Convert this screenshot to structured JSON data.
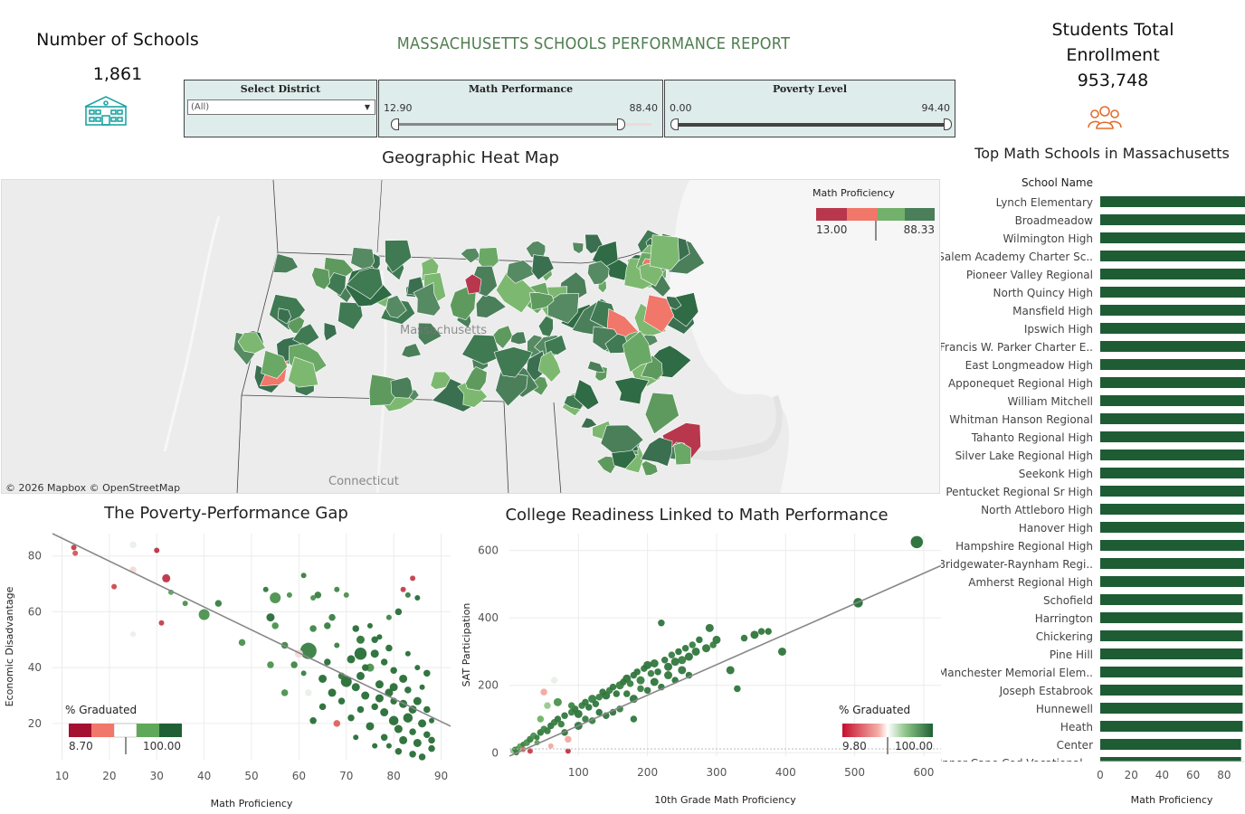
{
  "header": {
    "report_title": "MASSACHUSETTS SCHOOLS PERFORMANCE REPORT",
    "schools_label": "Number of Schools",
    "schools_value": "1,861",
    "enrollment_label_line1": "Students Total",
    "enrollment_label_line2": "Enrollment",
    "enrollment_value": "953,748"
  },
  "icons": {
    "schools": "school-building-icon",
    "enrollment": "people-group-icon",
    "teal": "#1fa5a5",
    "orange": "#e36d2c"
  },
  "filters": {
    "district": {
      "title": "Select District",
      "value": "(All)"
    },
    "math": {
      "title": "Math Performance",
      "min": "12.90",
      "max": "88.40",
      "low": 12.9,
      "high": 88.4
    },
    "poverty": {
      "title": "Poverty Level",
      "min": "0.00",
      "max": "94.40",
      "low": 0.0,
      "high": 94.4
    }
  },
  "map": {
    "title": "Geographic Heat Map",
    "legend_title": "Math Proficiency",
    "legend_min": "13.00",
    "legend_max": "88.33",
    "state_label": "Massachusetts",
    "neighbor_label": "Connecticut",
    "attribution": "© 2026 Mapbox  © OpenStreetMap",
    "colors": [
      "#b8374c",
      "#f0776a",
      "#73b06b",
      "#4a7f5a"
    ]
  },
  "chart_data": [
    {
      "type": "scatter",
      "title": "The Poverty-Performance Gap",
      "xlabel": "Math Proficiency",
      "ylabel": "Economic Disadvantage",
      "xlim": [
        8,
        92
      ],
      "ylim": [
        7,
        88
      ],
      "xticks": [
        10,
        20,
        30,
        40,
        50,
        60,
        70,
        80,
        90
      ],
      "yticks": [
        20,
        40,
        60,
        80
      ],
      "trendline": {
        "x0": 8,
        "y0": 88,
        "x1": 92,
        "y1": 19
      },
      "legend": {
        "title": "% Graduated",
        "min": "8.70",
        "max": "100.00",
        "position": "bottom-left"
      },
      "points": [
        [
          12.5,
          83,
          4,
          20
        ],
        [
          12.8,
          81,
          4,
          30
        ],
        [
          25,
          84,
          5,
          60
        ],
        [
          25,
          75,
          5,
          55
        ],
        [
          30,
          82,
          4,
          15
        ],
        [
          21,
          69,
          4,
          25
        ],
        [
          32,
          72,
          6,
          15
        ],
        [
          25,
          52,
          4,
          60
        ],
        [
          31,
          56,
          4,
          20
        ],
        [
          33,
          67,
          4,
          80
        ],
        [
          36,
          63,
          4,
          85
        ],
        [
          40,
          59,
          8,
          85
        ],
        [
          43,
          63,
          5,
          90
        ],
        [
          48,
          49,
          5,
          85
        ],
        [
          53,
          68,
          4,
          92
        ],
        [
          55,
          55,
          5,
          85
        ],
        [
          57,
          48,
          5,
          88
        ],
        [
          58,
          66,
          4,
          85
        ],
        [
          61,
          73,
          4,
          90
        ],
        [
          63,
          65,
          4,
          85
        ],
        [
          62,
          46,
          12,
          90
        ],
        [
          60,
          45,
          6,
          55
        ],
        [
          63,
          54,
          5,
          88
        ],
        [
          55,
          65,
          8,
          85
        ],
        [
          54,
          58,
          6,
          95
        ],
        [
          64,
          66,
          5,
          90
        ],
        [
          67,
          58,
          5,
          90
        ],
        [
          68,
          68,
          4,
          88
        ],
        [
          70,
          66,
          4,
          85
        ],
        [
          72,
          54,
          5,
          95
        ],
        [
          73,
          50,
          6,
          93
        ],
        [
          73,
          45,
          9,
          95
        ],
        [
          75,
          40,
          6,
          85
        ],
        [
          68,
          48,
          4,
          90
        ],
        [
          76,
          50,
          5,
          95
        ],
        [
          79,
          58,
          4,
          88
        ],
        [
          81,
          60,
          5,
          95
        ],
        [
          82,
          68,
          4,
          20
        ],
        [
          83,
          66,
          4,
          90
        ],
        [
          84,
          72,
          4,
          20
        ],
        [
          85,
          65,
          4,
          95
        ],
        [
          87,
          38,
          5,
          95
        ],
        [
          62,
          31,
          5,
          60
        ],
        [
          57,
          31,
          5,
          85
        ],
        [
          54,
          41,
          5,
          85
        ],
        [
          66,
          55,
          5,
          90
        ],
        [
          70,
          35,
          8,
          95
        ],
        [
          72,
          33,
          6,
          95
        ],
        [
          74,
          30,
          6,
          95
        ],
        [
          76,
          26,
          5,
          95
        ],
        [
          78,
          24,
          6,
          95
        ],
        [
          79,
          31,
          6,
          95
        ],
        [
          80,
          21,
          7,
          95
        ],
        [
          81,
          18,
          6,
          95
        ],
        [
          82,
          14,
          6,
          95
        ],
        [
          83,
          22,
          7,
          95
        ],
        [
          84,
          17,
          5,
          95
        ],
        [
          85,
          13,
          6,
          95
        ],
        [
          86,
          20,
          6,
          95
        ],
        [
          87,
          16,
          5,
          95
        ],
        [
          88,
          11,
          5,
          95
        ],
        [
          80,
          28,
          5,
          95
        ],
        [
          77,
          34,
          6,
          95
        ],
        [
          73,
          25,
          5,
          95
        ],
        [
          71,
          22,
          5,
          95
        ],
        [
          69,
          28,
          5,
          95
        ],
        [
          67,
          31,
          6,
          95
        ],
        [
          65,
          26,
          5,
          95
        ],
        [
          63,
          21,
          5,
          95
        ],
        [
          75,
          19,
          6,
          95
        ],
        [
          78,
          15,
          5,
          95
        ],
        [
          81,
          10,
          5,
          95
        ],
        [
          84,
          9,
          5,
          95
        ],
        [
          86,
          8,
          5,
          95
        ],
        [
          88,
          14,
          5,
          95
        ],
        [
          87,
          25,
          5,
          95
        ],
        [
          85,
          28,
          6,
          95
        ],
        [
          83,
          32,
          5,
          95
        ],
        [
          82,
          36,
          6,
          95
        ],
        [
          80,
          39,
          5,
          95
        ],
        [
          78,
          42,
          5,
          95
        ],
        [
          76,
          45,
          6,
          95
        ],
        [
          74,
          40,
          5,
          95
        ],
        [
          79,
          12,
          4,
          95
        ],
        [
          69,
          37,
          5,
          92
        ],
        [
          66,
          42,
          5,
          95
        ],
        [
          71,
          43,
          6,
          95
        ],
        [
          73,
          37,
          6,
          95
        ],
        [
          68,
          20,
          5,
          35
        ],
        [
          76,
          12,
          4,
          95
        ],
        [
          72,
          15,
          4,
          95
        ],
        [
          61,
          38,
          4,
          90
        ],
        [
          59,
          41,
          5,
          88
        ],
        [
          65,
          36,
          6,
          95
        ],
        [
          77,
          29,
          6,
          95
        ],
        [
          80,
          33,
          6,
          95
        ],
        [
          82,
          27,
          6,
          95
        ],
        [
          84,
          25,
          6,
          95
        ],
        [
          86,
          33,
          4,
          95
        ],
        [
          88,
          21,
          4,
          95
        ],
        [
          85,
          40,
          4,
          95
        ],
        [
          79,
          47,
          5,
          95
        ],
        [
          77,
          51,
          4,
          95
        ],
        [
          75,
          55,
          4,
          95
        ],
        [
          83,
          45,
          4,
          95
        ]
      ]
    },
    {
      "type": "scatter",
      "title": "College Readiness Linked to Math Performance",
      "xlabel": "10th Grade Math Proficiency",
      "ylabel": "SAT Participation",
      "xlim": [
        0,
        625
      ],
      "ylim": [
        -10,
        650
      ],
      "xticks": [
        100,
        200,
        300,
        400,
        500,
        600
      ],
      "yticks": [
        0,
        200,
        400,
        600
      ],
      "trendline": {
        "x0": 0,
        "y0": -10,
        "x1": 625,
        "y1": 555
      },
      "legend": {
        "title": "% Graduated",
        "min": "9.80",
        "max": "100.00",
        "position": "bottom-right"
      },
      "points": [
        [
          5,
          5,
          4,
          70
        ],
        [
          8,
          10,
          4,
          90
        ],
        [
          12,
          12,
          4,
          85
        ],
        [
          15,
          20,
          4,
          80
        ],
        [
          20,
          25,
          4,
          90
        ],
        [
          25,
          30,
          5,
          85
        ],
        [
          30,
          5,
          4,
          20
        ],
        [
          30,
          40,
          5,
          90
        ],
        [
          35,
          50,
          5,
          85
        ],
        [
          40,
          45,
          4,
          90
        ],
        [
          45,
          60,
          5,
          92
        ],
        [
          50,
          70,
          5,
          88
        ],
        [
          55,
          65,
          5,
          90
        ],
        [
          60,
          80,
          5,
          92
        ],
        [
          60,
          20,
          4,
          50
        ],
        [
          65,
          90,
          5,
          90
        ],
        [
          70,
          100,
          5,
          92
        ],
        [
          75,
          85,
          5,
          90
        ],
        [
          80,
          110,
          5,
          92
        ],
        [
          85,
          5,
          4,
          15
        ],
        [
          90,
          120,
          5,
          90
        ],
        [
          95,
          130,
          5,
          92
        ],
        [
          100,
          115,
          6,
          93
        ],
        [
          105,
          140,
          5,
          90
        ],
        [
          110,
          150,
          5,
          92
        ],
        [
          115,
          135,
          5,
          93
        ],
        [
          120,
          160,
          6,
          90
        ],
        [
          125,
          145,
          5,
          92
        ],
        [
          130,
          165,
          5,
          90
        ],
        [
          135,
          180,
          5,
          92
        ],
        [
          140,
          170,
          6,
          93
        ],
        [
          145,
          185,
          5,
          90
        ],
        [
          150,
          195,
          5,
          92
        ],
        [
          155,
          175,
          5,
          93
        ],
        [
          160,
          200,
          6,
          90
        ],
        [
          165,
          210,
          5,
          92
        ],
        [
          170,
          220,
          6,
          93
        ],
        [
          175,
          205,
          5,
          90
        ],
        [
          180,
          230,
          5,
          92
        ],
        [
          185,
          240,
          5,
          93
        ],
        [
          190,
          215,
          6,
          90
        ],
        [
          195,
          250,
          5,
          92
        ],
        [
          200,
          260,
          6,
          93
        ],
        [
          205,
          235,
          5,
          90
        ],
        [
          210,
          265,
          6,
          92
        ],
        [
          215,
          240,
          5,
          93
        ],
        [
          220,
          385,
          5,
          93
        ],
        [
          225,
          275,
          5,
          92
        ],
        [
          230,
          255,
          6,
          93
        ],
        [
          235,
          290,
          5,
          90
        ],
        [
          240,
          270,
          6,
          92
        ],
        [
          245,
          300,
          5,
          93
        ],
        [
          250,
          275,
          6,
          90
        ],
        [
          255,
          310,
          5,
          92
        ],
        [
          260,
          285,
          6,
          93
        ],
        [
          265,
          320,
          5,
          90
        ],
        [
          270,
          300,
          6,
          92
        ],
        [
          275,
          335,
          5,
          93
        ],
        [
          285,
          310,
          6,
          92
        ],
        [
          290,
          370,
          6,
          93
        ],
        [
          295,
          320,
          5,
          90
        ],
        [
          300,
          335,
          6,
          92
        ],
        [
          320,
          245,
          6,
          93
        ],
        [
          330,
          190,
          5,
          93
        ],
        [
          340,
          340,
          5,
          92
        ],
        [
          355,
          350,
          6,
          93
        ],
        [
          365,
          360,
          5,
          92
        ],
        [
          375,
          360,
          5,
          93
        ],
        [
          395,
          300,
          6,
          93
        ],
        [
          505,
          445,
          7,
          95
        ],
        [
          590,
          625,
          9,
          95
        ],
        [
          50,
          180,
          5,
          50
        ],
        [
          65,
          215,
          5,
          60
        ],
        [
          55,
          140,
          5,
          70
        ],
        [
          45,
          100,
          5,
          75
        ],
        [
          70,
          150,
          6,
          85
        ],
        [
          90,
          140,
          5,
          88
        ],
        [
          110,
          100,
          5,
          90
        ],
        [
          130,
          120,
          5,
          93
        ],
        [
          150,
          120,
          5,
          93
        ],
        [
          170,
          175,
          5,
          92
        ],
        [
          180,
          160,
          6,
          93
        ],
        [
          190,
          190,
          5,
          90
        ],
        [
          200,
          185,
          5,
          92
        ],
        [
          210,
          210,
          6,
          93
        ],
        [
          220,
          195,
          5,
          93
        ],
        [
          230,
          230,
          6,
          92
        ],
        [
          240,
          215,
          5,
          93
        ],
        [
          250,
          245,
          6,
          92
        ],
        [
          260,
          230,
          5,
          93
        ],
        [
          180,
          100,
          5,
          92
        ],
        [
          160,
          130,
          5,
          90
        ],
        [
          140,
          110,
          5,
          92
        ],
        [
          120,
          95,
          5,
          90
        ],
        [
          100,
          80,
          6,
          92
        ],
        [
          80,
          60,
          5,
          93
        ],
        [
          85,
          40,
          5,
          50
        ],
        [
          40,
          30,
          4,
          80
        ],
        [
          20,
          10,
          4,
          35
        ],
        [
          10,
          0,
          4,
          90
        ]
      ]
    },
    {
      "type": "bar",
      "title": "Top Math Schools in Massachusetts",
      "category_label": "School Name",
      "xlabel": "Math Proficiency",
      "xlim": [
        0,
        90
      ],
      "xticks": [
        0,
        20,
        40,
        60,
        80
      ],
      "categories": [
        "Lynch Elementary",
        "Broadmeadow",
        "Wilmington High",
        "Salem Academy Charter Sc..",
        "Pioneer Valley Regional",
        "North Quincy High",
        "Mansfield High",
        "Ipswich High",
        "Francis W. Parker Charter E..",
        "East Longmeadow High",
        "Apponequet Regional High",
        "William Mitchell",
        "Whitman Hanson Regional",
        "Tahanto Regional High",
        "Silver Lake Regional High",
        "Seekonk High",
        "Pentucket Regional Sr High",
        "North Attleboro High",
        "Hanover High",
        "Hampshire Regional High",
        "Bridgewater-Raynham Regi..",
        "Amherst Regional High",
        "Schofield",
        "Harrington",
        "Chickering",
        "Pine Hill",
        "Manchester Memorial Elem..",
        "Joseph Estabrook",
        "Hunnewell",
        "Heath",
        "Center",
        "Upper Cape Cod Vocational .."
      ],
      "values": [
        94,
        94,
        94,
        94,
        94,
        94,
        94,
        94,
        94,
        94,
        94,
        93,
        93,
        93,
        93,
        93,
        93,
        93,
        93,
        93,
        93,
        93,
        92,
        92,
        92,
        92,
        92,
        92,
        92,
        92,
        91,
        91
      ],
      "color": "#1e5c34"
    }
  ]
}
